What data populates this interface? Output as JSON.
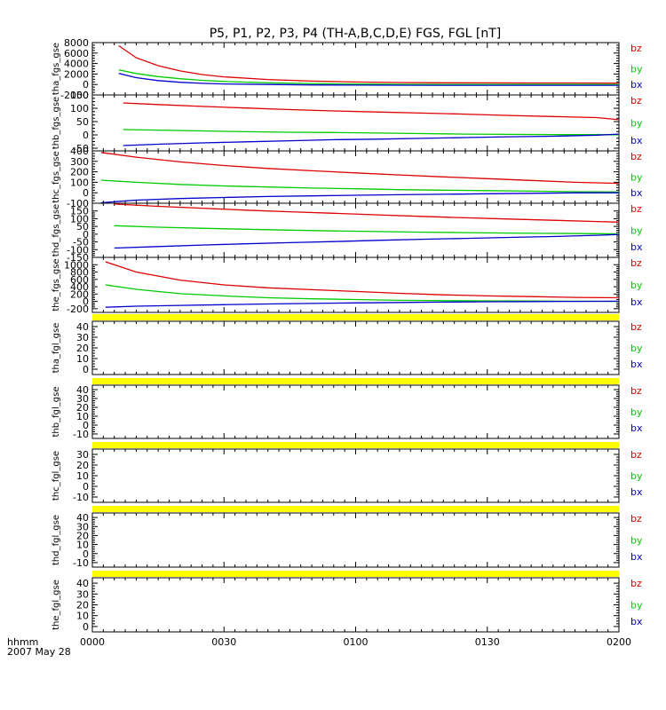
{
  "title": "P5, P1, P2, P3, P4 (TH-A,B,C,D,E) FGS, FGL [nT]",
  "colors": {
    "bz": "#dd0000",
    "by": "#00cc00",
    "bx": "#0000cc",
    "bar": "#ffff00",
    "axis": "#000000"
  },
  "x_axis": {
    "label_line1": "hhmm",
    "label_line2": "2007 May 28",
    "range_minutes": [
      0,
      120
    ],
    "ticks": [
      {
        "minute": 0,
        "label": "0000"
      },
      {
        "minute": 30,
        "label": "0030"
      },
      {
        "minute": 60,
        "label": "0100"
      },
      {
        "minute": 90,
        "label": "0130"
      },
      {
        "minute": 120,
        "label": "0200"
      }
    ]
  },
  "chart_data": [
    {
      "type": "line",
      "ylabel": "tha_fgs_gse",
      "ylim": [
        -2000,
        8000
      ],
      "yticks": [
        "8000",
        "6000",
        "4000",
        "2000",
        "0",
        "-2000"
      ],
      "yvalues": [
        8000,
        6000,
        4000,
        2000,
        0,
        -2000
      ],
      "legend": [
        "bz",
        "by",
        "bx"
      ],
      "grid": false,
      "series": [
        {
          "name": "bz",
          "x": [
            6,
            10,
            15,
            20,
            25,
            30,
            40,
            50,
            60,
            70,
            80,
            90,
            100,
            110,
            120
          ],
          "values": [
            7400,
            5100,
            3600,
            2600,
            1900,
            1450,
            950,
            650,
            480,
            380,
            330,
            300,
            290,
            280,
            270
          ]
        },
        {
          "name": "by",
          "x": [
            6,
            10,
            15,
            20,
            25,
            30,
            40,
            50,
            60,
            70,
            80,
            90,
            100,
            110,
            120
          ],
          "values": [
            2800,
            2100,
            1500,
            1100,
            800,
            580,
            330,
            180,
            90,
            40,
            20,
            10,
            5,
            0,
            0
          ]
        },
        {
          "name": "bx",
          "x": [
            6,
            10,
            15,
            20,
            25,
            30,
            40,
            50,
            60,
            70,
            80,
            90,
            100,
            110,
            120
          ],
          "values": [
            2100,
            1300,
            750,
            420,
            220,
            100,
            0,
            -80,
            -120,
            -140,
            -150,
            -155,
            -160,
            -160,
            -160
          ]
        }
      ]
    },
    {
      "type": "line",
      "ylabel": "thb_fgs_gse",
      "ylim": [
        -60,
        150
      ],
      "yticks": [
        "150",
        "100",
        "50",
        "0",
        "-50"
      ],
      "yvalues": [
        150,
        100,
        50,
        0,
        -50
      ],
      "legend": [
        "bz",
        "by",
        "bx"
      ],
      "grid": false,
      "series": [
        {
          "name": "bz",
          "x": [
            7,
            15,
            25,
            35,
            45,
            55,
            65,
            75,
            85,
            95,
            105,
            115,
            120
          ],
          "values": [
            120,
            114,
            107,
            101,
            95,
            90,
            86,
            82,
            78,
            73,
            69,
            65,
            57
          ]
        },
        {
          "name": "by",
          "x": [
            7,
            15,
            25,
            35,
            45,
            55,
            65,
            75,
            85,
            95,
            105,
            115,
            120
          ],
          "values": [
            20,
            18,
            15,
            12,
            10,
            9,
            7,
            5,
            3,
            2,
            1,
            1,
            0
          ]
        },
        {
          "name": "bx",
          "x": [
            7,
            15,
            25,
            35,
            45,
            55,
            65,
            75,
            85,
            95,
            105,
            115,
            120
          ],
          "values": [
            -40,
            -35,
            -30,
            -26,
            -22,
            -18,
            -16,
            -13,
            -10,
            -7,
            -5,
            -1,
            3
          ]
        }
      ]
    },
    {
      "type": "line",
      "ylabel": "thc_fgs_gse",
      "ylim": [
        -100,
        400
      ],
      "yticks": [
        "400",
        "300",
        "200",
        "100",
        "0",
        "-100"
      ],
      "yvalues": [
        400,
        300,
        200,
        100,
        0,
        -100
      ],
      "legend": [
        "bz",
        "by",
        "bx"
      ],
      "grid": false,
      "series": [
        {
          "name": "bz",
          "x": [
            2,
            10,
            20,
            30,
            40,
            50,
            60,
            70,
            80,
            90,
            100,
            110,
            120
          ],
          "values": [
            385,
            340,
            295,
            260,
            232,
            210,
            190,
            170,
            152,
            135,
            118,
            100,
            90
          ]
        },
        {
          "name": "by",
          "x": [
            2,
            10,
            20,
            30,
            40,
            50,
            60,
            70,
            80,
            90,
            100,
            110,
            120
          ],
          "values": [
            120,
            100,
            80,
            65,
            55,
            45,
            38,
            30,
            25,
            20,
            15,
            10,
            8
          ]
        },
        {
          "name": "bx",
          "x": [
            2,
            10,
            20,
            30,
            40,
            50,
            60,
            70,
            80,
            90,
            100,
            110,
            120
          ],
          "values": [
            -95,
            -70,
            -55,
            -45,
            -36,
            -30,
            -24,
            -19,
            -14,
            -9,
            -5,
            -1,
            0
          ]
        }
      ]
    },
    {
      "type": "line",
      "ylabel": "thd_fgs_gse",
      "ylim": [
        -150,
        200
      ],
      "yticks": [
        "150",
        "100",
        "50",
        "0",
        "-50",
        "-100",
        "-150"
      ],
      "yvalues": [
        150,
        100,
        50,
        0,
        -50,
        -100,
        -150
      ],
      "legend": [
        "bz",
        "by",
        "bx"
      ],
      "grid": false,
      "series": [
        {
          "name": "bz",
          "x": [
            5,
            15,
            25,
            35,
            45,
            55,
            65,
            75,
            85,
            95,
            105,
            115,
            120
          ],
          "values": [
            195,
            180,
            168,
            155,
            145,
            135,
            125,
            115,
            106,
            98,
            90,
            82,
            78
          ]
        },
        {
          "name": "by",
          "x": [
            5,
            15,
            25,
            35,
            45,
            55,
            65,
            75,
            85,
            95,
            105,
            115,
            120
          ],
          "values": [
            55,
            45,
            38,
            32,
            26,
            21,
            17,
            13,
            10,
            7,
            5,
            3,
            2
          ]
        },
        {
          "name": "bx",
          "x": [
            5,
            15,
            25,
            35,
            45,
            55,
            65,
            75,
            85,
            95,
            105,
            115,
            120
          ],
          "values": [
            -90,
            -80,
            -70,
            -62,
            -55,
            -48,
            -40,
            -33,
            -27,
            -21,
            -15,
            -7,
            -2
          ]
        }
      ]
    },
    {
      "type": "line",
      "ylabel": "the_fgs_gse",
      "ylim": [
        -300,
        1200
      ],
      "yticks": [
        "1000",
        "800",
        "600",
        "400",
        "200",
        "0",
        "-200"
      ],
      "yvalues": [
        1000,
        800,
        600,
        400,
        200,
        0,
        -200
      ],
      "legend": [
        "bz",
        "by",
        "bx"
      ],
      "grid": false,
      "series": [
        {
          "name": "bz",
          "x": [
            3,
            10,
            20,
            30,
            40,
            50,
            60,
            70,
            80,
            90,
            100,
            110,
            120
          ],
          "values": [
            1080,
            800,
            580,
            450,
            370,
            320,
            270,
            220,
            180,
            150,
            130,
            110,
            100
          ]
        },
        {
          "name": "by",
          "x": [
            3,
            10,
            20,
            30,
            40,
            50,
            60,
            70,
            80,
            90,
            100,
            110,
            120
          ],
          "values": [
            450,
            330,
            210,
            150,
            100,
            70,
            50,
            30,
            20,
            15,
            10,
            5,
            0
          ]
        },
        {
          "name": "bx",
          "x": [
            3,
            10,
            20,
            30,
            40,
            50,
            60,
            70,
            80,
            90,
            100,
            110,
            120
          ],
          "values": [
            -160,
            -130,
            -110,
            -90,
            -70,
            -55,
            -40,
            -30,
            -20,
            -10,
            -5,
            0,
            5
          ]
        }
      ]
    },
    {
      "type": "line",
      "ylabel": "tha_fgl_gse",
      "ylim": [
        -5,
        45
      ],
      "yticks": [
        "40",
        "30",
        "20",
        "10",
        "0"
      ],
      "yvalues": [
        40,
        30,
        20,
        10,
        0
      ],
      "legend": [
        "bz",
        "by",
        "bx"
      ],
      "grid": false,
      "series": []
    },
    {
      "type": "line",
      "ylabel": "thb_fgl_gse",
      "ylim": [
        -15,
        45
      ],
      "yticks": [
        "40",
        "30",
        "20",
        "10",
        "0",
        "-10"
      ],
      "yvalues": [
        40,
        30,
        20,
        10,
        0,
        -10
      ],
      "legend": [
        "bz",
        "by",
        "bx"
      ],
      "grid": false,
      "series": []
    },
    {
      "type": "line",
      "ylabel": "thc_fgl_gse",
      "ylim": [
        -15,
        35
      ],
      "yticks": [
        "30",
        "20",
        "10",
        "0",
        "-10"
      ],
      "yvalues": [
        30,
        20,
        10,
        0,
        -10
      ],
      "legend": [
        "bz",
        "by",
        "bx"
      ],
      "grid": false,
      "series": []
    },
    {
      "type": "line",
      "ylabel": "thd_fgl_gse",
      "ylim": [
        -15,
        45
      ],
      "yticks": [
        "40",
        "30",
        "20",
        "10",
        "0",
        "-10"
      ],
      "yvalues": [
        40,
        30,
        20,
        10,
        0,
        -10
      ],
      "legend": [
        "bz",
        "by",
        "bx"
      ],
      "grid": false,
      "series": []
    },
    {
      "type": "line",
      "ylabel": "the_fgl_gse",
      "ylim": [
        -5,
        45
      ],
      "yticks": [
        "40",
        "30",
        "20",
        "10",
        "0"
      ],
      "yvalues": [
        40,
        30,
        20,
        10,
        0
      ],
      "legend": [
        "bz",
        "by",
        "bx"
      ],
      "grid": false,
      "series": []
    }
  ]
}
